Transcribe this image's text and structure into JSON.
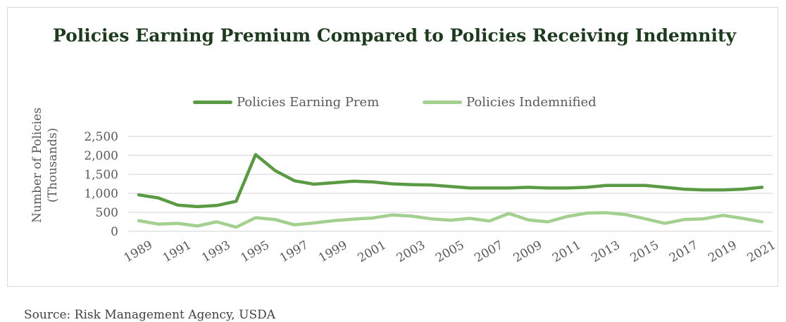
{
  "chart_data": {
    "type": "line",
    "title": "Policies Earning Premium Compared to Policies Receiving Indemnity",
    "ylabel": "Number of Policies (Thousands)",
    "xlabel": "",
    "ylim": [
      0,
      2500
    ],
    "yticks": [
      "2,500",
      "2,000",
      "1,500",
      "1,000",
      "500",
      "0"
    ],
    "ytick_values": [
      2500,
      2000,
      1500,
      1000,
      500,
      0
    ],
    "xtick_labels": [
      "1989",
      "1991",
      "1993",
      "1995",
      "1997",
      "1999",
      "2001",
      "2003",
      "2005",
      "2007",
      "2009",
      "2011",
      "2013",
      "2015",
      "2017",
      "2019",
      "2021"
    ],
    "x": [
      1989,
      1990,
      1991,
      1992,
      1993,
      1994,
      1995,
      1996,
      1997,
      1998,
      1999,
      2000,
      2001,
      2002,
      2003,
      2004,
      2005,
      2006,
      2007,
      2008,
      2009,
      2010,
      2011,
      2012,
      2013,
      2014,
      2015,
      2016,
      2017,
      2018,
      2019,
      2020,
      2021
    ],
    "grid": "horizontal",
    "legend_position": "top",
    "series": [
      {
        "name": "Policies Earning Prem",
        "color": "#5b9a45",
        "values": [
          960,
          880,
          690,
          650,
          680,
          790,
          2020,
          1600,
          1330,
          1240,
          1280,
          1320,
          1300,
          1250,
          1230,
          1220,
          1180,
          1140,
          1140,
          1140,
          1160,
          1140,
          1140,
          1160,
          1210,
          1210,
          1210,
          1160,
          1110,
          1090,
          1090,
          1110,
          1160
        ]
      },
      {
        "name": "Policies Indemnified",
        "color": "#a3cf8f",
        "values": [
          280,
          190,
          210,
          140,
          250,
          110,
          360,
          310,
          170,
          220,
          280,
          320,
          350,
          430,
          400,
          330,
          290,
          340,
          270,
          470,
          300,
          250,
          390,
          480,
          490,
          440,
          330,
          210,
          310,
          330,
          420,
          340,
          250
        ]
      }
    ]
  },
  "source": "Source: Risk Management Agency, USDA"
}
